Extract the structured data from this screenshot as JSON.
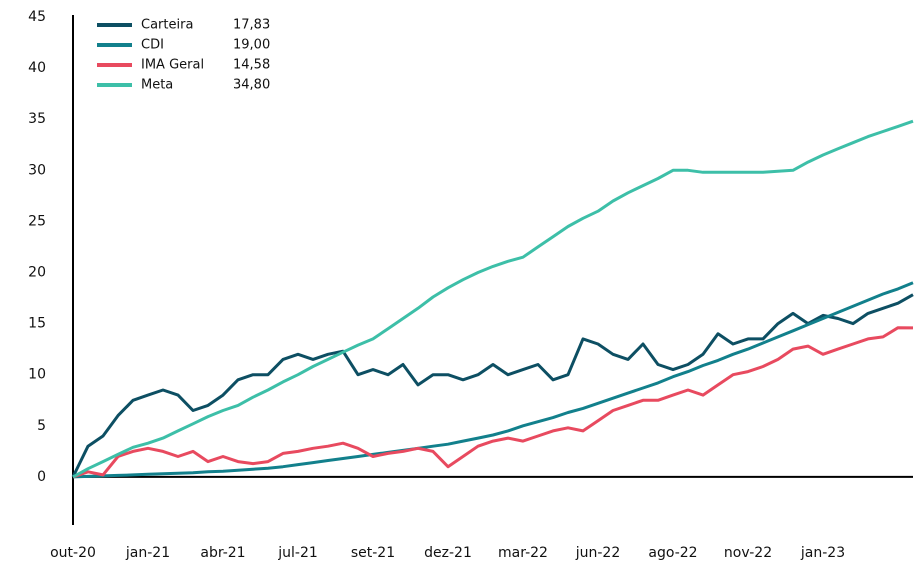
{
  "chart_data": {
    "type": "line",
    "categories": [
      "out-20",
      null,
      null,
      null,
      null,
      "jan-21",
      null,
      null,
      null,
      null,
      "abr-21",
      null,
      null,
      null,
      null,
      "jul-21",
      null,
      null,
      null,
      null,
      "set-21",
      null,
      null,
      null,
      null,
      "dez-21",
      null,
      null,
      null,
      null,
      "mar-22",
      null,
      null,
      null,
      null,
      "jun-22",
      null,
      null,
      null,
      null,
      "ago-22",
      null,
      null,
      null,
      null,
      "nov-22",
      null,
      null,
      null,
      null,
      "jan-23",
      null,
      null,
      null,
      null,
      null,
      null
    ],
    "series": [
      {
        "name": "Carteira",
        "legend_value": "17,83",
        "color": "#0d4f63",
        "values": [
          0,
          3,
          4,
          6,
          7.5,
          8,
          8.5,
          8,
          6.5,
          7,
          8,
          9.5,
          10,
          10,
          11.5,
          12,
          11.5,
          12,
          12.3,
          10,
          10.5,
          10,
          11,
          9,
          10,
          10,
          9.5,
          10,
          11,
          10,
          10.5,
          11,
          9.5,
          10,
          13.5,
          13,
          12,
          11.5,
          13,
          11,
          10.5,
          11,
          12,
          14,
          13,
          13.5,
          13.5,
          15,
          16,
          15,
          15.8,
          15.5,
          15,
          16,
          16.5,
          17,
          17.83
        ]
      },
      {
        "name": "CDI",
        "legend_value": "19,00",
        "color": "#12808c",
        "values": [
          0,
          0.05,
          0.1,
          0.15,
          0.2,
          0.25,
          0.3,
          0.35,
          0.4,
          0.5,
          0.55,
          0.65,
          0.75,
          0.85,
          1,
          1.2,
          1.4,
          1.6,
          1.8,
          2,
          2.2,
          2.4,
          2.6,
          2.8,
          3,
          3.2,
          3.5,
          3.8,
          4.1,
          4.5,
          5,
          5.4,
          5.8,
          6.3,
          6.7,
          7.2,
          7.7,
          8.2,
          8.7,
          9.2,
          9.8,
          10.3,
          10.9,
          11.4,
          12,
          12.5,
          13.1,
          13.7,
          14.3,
          14.9,
          15.5,
          16.1,
          16.7,
          17.3,
          17.9,
          18.4,
          19
        ]
      },
      {
        "name": "IMA Geral",
        "legend_value": "14,58",
        "color": "#e84a5f",
        "values": [
          0,
          0.5,
          0.2,
          2,
          2.5,
          2.8,
          2.5,
          2,
          2.5,
          1.5,
          2,
          1.5,
          1.3,
          1.5,
          2.3,
          2.5,
          2.8,
          3,
          3.3,
          2.8,
          2,
          2.3,
          2.5,
          2.8,
          2.5,
          1,
          2,
          3,
          3.5,
          3.8,
          3.5,
          4,
          4.5,
          4.8,
          4.5,
          5.5,
          6.5,
          7,
          7.5,
          7.5,
          8,
          8.5,
          8,
          9,
          10,
          10.3,
          10.8,
          11.5,
          12.5,
          12.8,
          12,
          12.5,
          13,
          13.5,
          13.7,
          14.6,
          14.58
        ]
      },
      {
        "name": "Meta",
        "legend_value": "34,80",
        "color": "#3dbfa8",
        "values": [
          0,
          0.8,
          1.5,
          2.2,
          2.9,
          3.3,
          3.8,
          4.5,
          5.2,
          5.9,
          6.5,
          7,
          7.8,
          8.5,
          9.3,
          10,
          10.8,
          11.5,
          12.2,
          12.9,
          13.5,
          14.5,
          15.5,
          16.5,
          17.6,
          18.5,
          19.3,
          20,
          20.6,
          21.1,
          21.5,
          22.5,
          23.5,
          24.5,
          25.3,
          26,
          27,
          27.8,
          28.5,
          29.2,
          30,
          30,
          29.8,
          29.8,
          29.8,
          29.8,
          29.8,
          29.9,
          30,
          30.8,
          31.5,
          32.1,
          32.7,
          33.3,
          33.8,
          34.3,
          34.8
        ]
      }
    ],
    "ylim": [
      -5,
      45
    ],
    "yticks": [
      0,
      5,
      10,
      15,
      20,
      25,
      30,
      35,
      40,
      45
    ],
    "grid": false
  }
}
